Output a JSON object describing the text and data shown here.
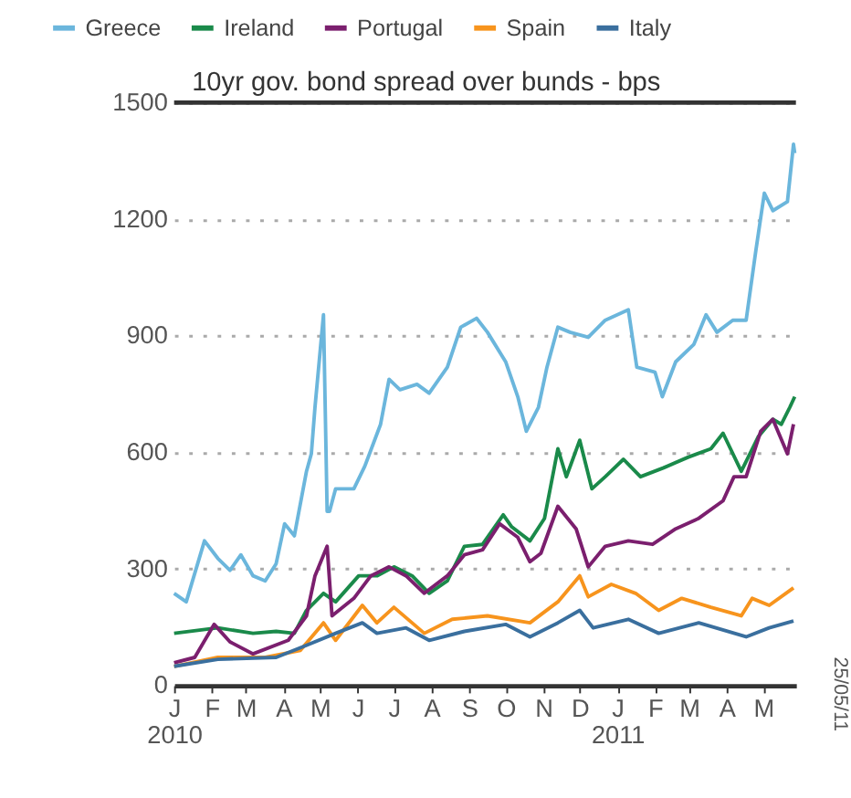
{
  "chart_data": {
    "type": "line",
    "title": "10yr gov. bond spread over bunds - bps",
    "legend": "top",
    "grid": "y",
    "line_style": "solid",
    "marker": "none",
    "xlim": [
      "2010-01-01",
      "2011-05-28"
    ],
    "xticks": [
      {
        "value": "2010-01-01",
        "label": "J\n2010"
      },
      {
        "value": "2010-02-01",
        "label": "F"
      },
      {
        "value": "2010-03-01",
        "label": "M"
      },
      {
        "value": "2010-04-01",
        "label": "A"
      },
      {
        "value": "2010-05-01",
        "label": "M"
      },
      {
        "value": "2010-06-01",
        "label": "J"
      },
      {
        "value": "2010-07-01",
        "label": "J"
      },
      {
        "value": "2010-08-01",
        "label": "A"
      },
      {
        "value": "2010-09-01",
        "label": "S"
      },
      {
        "value": "2010-10-01",
        "label": "O"
      },
      {
        "value": "2010-11-01",
        "label": "N"
      },
      {
        "value": "2010-12-01",
        "label": "D"
      },
      {
        "value": "2011-01-01",
        "label": "J\n2011"
      },
      {
        "value": "2011-02-01",
        "label": "F"
      },
      {
        "value": "2011-03-01",
        "label": "M"
      },
      {
        "value": "2011-04-01",
        "label": "A"
      },
      {
        "value": "2011-05-01",
        "label": "M"
      }
    ],
    "ylim": [
      0,
      1500
    ],
    "yticks": [
      0,
      300,
      600,
      900,
      1200,
      1500
    ],
    "annotations": [
      "25/05/11"
    ],
    "series": [
      {
        "name": "Greece",
        "color": "#6bb6dc",
        "x": [
          "2010-01-01",
          "2010-01-11",
          "2010-01-26",
          "2010-02-06",
          "2010-02-16",
          "2010-02-25",
          "2010-03-07",
          "2010-03-17",
          "2010-03-26",
          "2010-04-02",
          "2010-04-10",
          "2010-04-20",
          "2010-04-24",
          "2010-04-27",
          "2010-05-04",
          "2010-05-07",
          "2010-05-09",
          "2010-05-14",
          "2010-05-29",
          "2010-06-07",
          "2010-06-20",
          "2010-06-27",
          "2010-07-06",
          "2010-07-20",
          "2010-07-30",
          "2010-08-14",
          "2010-08-25",
          "2010-09-07",
          "2010-09-16",
          "2010-10-01",
          "2010-10-11",
          "2010-10-18",
          "2010-10-28",
          "2010-11-04",
          "2010-11-13",
          "2010-11-23",
          "2010-12-08",
          "2010-12-22",
          "2011-01-10",
          "2011-01-17",
          "2011-02-01",
          "2011-02-07",
          "2011-02-18",
          "2011-03-05",
          "2011-03-15",
          "2011-03-24",
          "2011-04-06",
          "2011-04-17",
          "2011-04-25",
          "2011-05-02",
          "2011-05-09",
          "2011-05-21",
          "2011-05-26",
          "2011-05-27"
        ],
        "values": [
          237,
          215,
          372,
          327,
          296,
          336,
          282,
          269,
          313,
          416,
          385,
          551,
          596,
          716,
          954,
          448,
          448,
          506,
          506,
          564,
          672,
          788,
          761,
          775,
          752,
          819,
          922,
          945,
          909,
          833,
          743,
          654,
          716,
          819,
          922,
          909,
          896,
          940,
          967,
          819,
          806,
          743,
          833,
          878,
          954,
          909,
          940,
          940,
          1119,
          1267,
          1222,
          1245,
          1393,
          1370
        ]
      },
      {
        "name": "Ireland",
        "color": "#1a8a4a",
        "x": [
          "2010-01-01",
          "2010-02-06",
          "2010-03-07",
          "2010-03-26",
          "2010-04-10",
          "2010-04-20",
          "2010-05-04",
          "2010-05-14",
          "2010-06-02",
          "2010-06-17",
          "2010-07-01",
          "2010-07-16",
          "2010-07-30",
          "2010-08-14",
          "2010-08-28",
          "2010-09-12",
          "2010-09-29",
          "2010-10-06",
          "2010-10-21",
          "2010-11-02",
          "2010-11-13",
          "2010-11-20",
          "2010-12-01",
          "2010-12-11",
          "2010-12-22",
          "2011-01-06",
          "2011-01-20",
          "2011-02-08",
          "2011-02-28",
          "2011-03-19",
          "2011-03-29",
          "2011-04-13",
          "2011-04-27",
          "2011-05-09",
          "2011-05-16",
          "2011-05-23",
          "2011-05-27"
        ],
        "values": [
          134,
          148,
          134,
          139,
          134,
          193,
          237,
          215,
          282,
          282,
          305,
          282,
          237,
          269,
          358,
          363,
          439,
          408,
          372,
          430,
          609,
          537,
          631,
          506,
          537,
          582,
          537,
          560,
          587,
          609,
          649,
          551,
          640,
          685,
          672,
          716,
          743
        ]
      },
      {
        "name": "Portugal",
        "color": "#7b1f6e",
        "x": [
          "2010-01-01",
          "2010-01-18",
          "2010-02-03",
          "2010-02-16",
          "2010-03-07",
          "2010-04-05",
          "2010-04-20",
          "2010-04-27",
          "2010-05-07",
          "2010-05-11",
          "2010-05-29",
          "2010-06-12",
          "2010-06-27",
          "2010-07-11",
          "2010-07-26",
          "2010-08-14",
          "2010-08-28",
          "2010-09-12",
          "2010-09-26",
          "2010-10-11",
          "2010-10-21",
          "2010-10-30",
          "2010-11-13",
          "2010-11-28",
          "2010-12-08",
          "2010-12-22",
          "2011-01-10",
          "2011-01-30",
          "2011-02-18",
          "2011-03-09",
          "2011-03-29",
          "2011-04-07",
          "2011-04-17",
          "2011-04-29",
          "2011-05-09",
          "2011-05-21",
          "2011-05-26"
        ],
        "values": [
          58,
          72,
          157,
          112,
          81,
          116,
          179,
          282,
          358,
          179,
          224,
          282,
          305,
          282,
          237,
          282,
          336,
          349,
          416,
          381,
          318,
          340,
          461,
          403,
          305,
          358,
          372,
          363,
          403,
          430,
          475,
          537,
          537,
          654,
          685,
          596,
          672
        ]
      },
      {
        "name": "Spain",
        "color": "#f7941d",
        "x": [
          "2010-01-01",
          "2010-02-06",
          "2010-03-17",
          "2010-04-15",
          "2010-05-04",
          "2010-05-14",
          "2010-06-05",
          "2010-06-17",
          "2010-07-01",
          "2010-07-26",
          "2010-08-18",
          "2010-09-16",
          "2010-10-21",
          "2010-11-13",
          "2010-12-01",
          "2010-12-08",
          "2010-12-27",
          "2011-01-16",
          "2011-02-04",
          "2011-02-23",
          "2011-03-19",
          "2011-04-13",
          "2011-04-22",
          "2011-05-06",
          "2011-05-26"
        ],
        "values": [
          49,
          72,
          72,
          90,
          161,
          116,
          206,
          161,
          201,
          134,
          170,
          179,
          161,
          215,
          282,
          228,
          260,
          237,
          193,
          224,
          201,
          179,
          224,
          206,
          251
        ]
      },
      {
        "name": "Italy",
        "color": "#3a6f9e",
        "x": [
          "2010-01-01",
          "2010-02-06",
          "2010-03-26",
          "2010-04-20",
          "2010-05-14",
          "2010-06-05",
          "2010-06-17",
          "2010-07-11",
          "2010-07-30",
          "2010-08-28",
          "2010-10-01",
          "2010-10-21",
          "2010-11-13",
          "2010-12-01",
          "2010-12-12",
          "2011-01-10",
          "2011-02-04",
          "2011-03-09",
          "2011-04-17",
          "2011-05-06",
          "2011-05-26"
        ],
        "values": [
          49,
          67,
          72,
          103,
          134,
          161,
          134,
          148,
          116,
          139,
          157,
          125,
          161,
          193,
          148,
          170,
          134,
          161,
          125,
          148,
          166
        ]
      }
    ]
  }
}
